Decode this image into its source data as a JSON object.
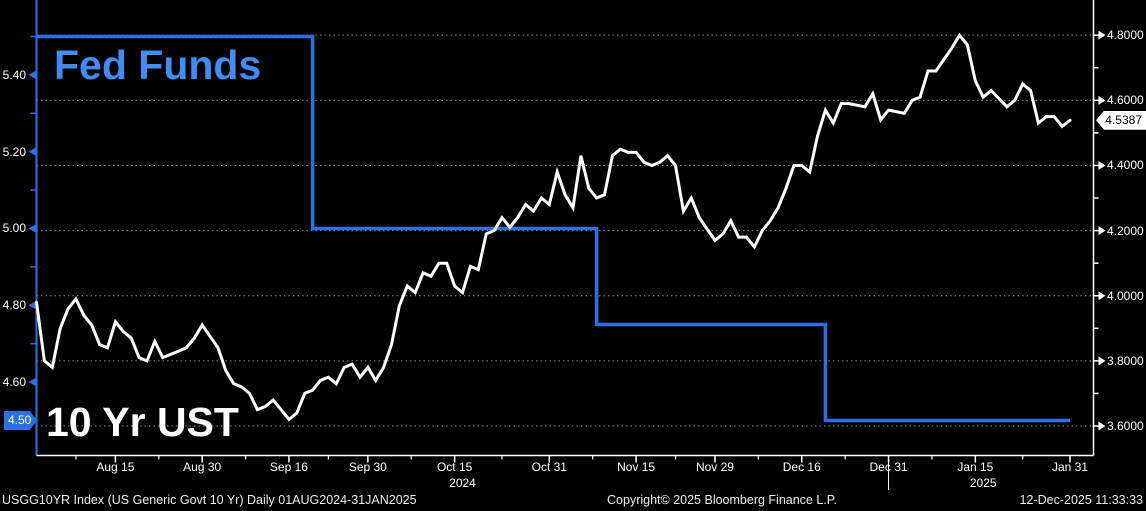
{
  "series_labels": {
    "fed_funds": "Fed Funds",
    "ust": "10 Yr UST"
  },
  "colors": {
    "background": "#000000",
    "chart_blue": "#2C6FE6",
    "label_blue": "#3F8CF5",
    "white": "#FFFFFF",
    "grid_gray": "#909090",
    "value_tag_bg": "#FFFFFF",
    "value_tag_text": "#000000"
  },
  "left_axis": {
    "tick_labels": [
      "5.40",
      "5.20",
      "5.00",
      "4.80",
      "4.60"
    ],
    "tick_values": [
      5.4,
      5.2,
      5.0,
      4.8,
      4.6
    ],
    "minor_tick_values": [
      5.5,
      5.3,
      5.1,
      4.9,
      4.7
    ],
    "highlight_label": "4.50",
    "highlight_value": 4.5
  },
  "right_axis": {
    "tick_labels": [
      "4.8000",
      "4.6000",
      "4.4000",
      "4.2000",
      "4.0000",
      "3.8000",
      "3.6000"
    ],
    "tick_values": [
      4.8,
      4.6,
      4.4,
      4.2,
      4.0,
      3.8,
      3.6
    ],
    "minor_tick_values": [
      4.7,
      4.5,
      4.3,
      4.1,
      3.9,
      3.7
    ],
    "last_label": "4.5387",
    "last_value": 4.5387
  },
  "x_axis": {
    "ticks": [
      {
        "label": "Aug 15",
        "date": "2024-08-15"
      },
      {
        "label": "Aug 30",
        "date": "2024-08-30"
      },
      {
        "label": "Sep 16",
        "date": "2024-09-16"
      },
      {
        "label": "Sep 30",
        "date": "2024-09-30"
      },
      {
        "label": "Oct 15",
        "date": "2024-10-15"
      },
      {
        "label": "Oct 31",
        "date": "2024-10-31"
      },
      {
        "label": "Nov 15",
        "date": "2024-11-15"
      },
      {
        "label": "Nov 29",
        "date": "2024-11-29"
      },
      {
        "label": "Dec 16",
        "date": "2024-12-16"
      },
      {
        "label": "Dec 31",
        "date": "2024-12-31"
      },
      {
        "label": "Jan 15",
        "date": "2025-01-15"
      },
      {
        "label": "Jan 31",
        "date": "2025-01-31"
      }
    ],
    "year_labels": [
      {
        "label": "2024",
        "center_date": "2024-10-16"
      },
      {
        "label": "2025",
        "center_date": "2025-01-16"
      }
    ],
    "year_separator_date": "2024-12-31"
  },
  "footer": {
    "left": "USGG10YR Index (US Generic Govt 10 Yr) Daily 01AUG2024-31JAN2025",
    "center": "Copyright© 2025 Bloomberg Finance L.P.",
    "right": "12-Dec-2025 11:33:33"
  },
  "chart_data": {
    "type": "line",
    "xlim": [
      "2024-08-01",
      "2025-01-31"
    ],
    "left_ylim": [
      4.41,
      5.595
    ],
    "right_ylim": [
      3.511,
      4.908
    ],
    "grid": "dotted-horizontal-at-right-axis-ticks",
    "legend_position": "in-plot-text-labels",
    "series": [
      {
        "name": "Fed Funds",
        "axis": "left",
        "style": "step",
        "color_key": "chart_blue",
        "steps": [
          {
            "from": "2024-08-01",
            "rate": 5.5
          },
          {
            "from": "2024-09-19",
            "rate": 5.0
          },
          {
            "from": "2024-11-08",
            "rate": 4.75
          },
          {
            "from": "2024-12-19",
            "rate": 4.5
          }
        ],
        "end": "2025-01-31"
      },
      {
        "name": "10 Yr UST",
        "axis": "right",
        "style": "line",
        "color_key": "white",
        "dates": [
          "2024-08-01",
          "2024-08-02",
          "2024-08-05",
          "2024-08-06",
          "2024-08-07",
          "2024-08-08",
          "2024-08-09",
          "2024-08-12",
          "2024-08-13",
          "2024-08-14",
          "2024-08-15",
          "2024-08-16",
          "2024-08-19",
          "2024-08-20",
          "2024-08-21",
          "2024-08-22",
          "2024-08-23",
          "2024-08-26",
          "2024-08-27",
          "2024-08-28",
          "2024-08-29",
          "2024-08-30",
          "2024-09-03",
          "2024-09-04",
          "2024-09-05",
          "2024-09-06",
          "2024-09-09",
          "2024-09-10",
          "2024-09-11",
          "2024-09-12",
          "2024-09-13",
          "2024-09-16",
          "2024-09-17",
          "2024-09-18",
          "2024-09-19",
          "2024-09-20",
          "2024-09-23",
          "2024-09-24",
          "2024-09-25",
          "2024-09-26",
          "2024-09-27",
          "2024-09-30",
          "2024-10-01",
          "2024-10-02",
          "2024-10-03",
          "2024-10-04",
          "2024-10-07",
          "2024-10-08",
          "2024-10-09",
          "2024-10-10",
          "2024-10-11",
          "2024-10-14",
          "2024-10-15",
          "2024-10-16",
          "2024-10-17",
          "2024-10-18",
          "2024-10-21",
          "2024-10-22",
          "2024-10-23",
          "2024-10-24",
          "2024-10-25",
          "2024-10-28",
          "2024-10-29",
          "2024-10-30",
          "2024-10-31",
          "2024-11-01",
          "2024-11-04",
          "2024-11-05",
          "2024-11-06",
          "2024-11-07",
          "2024-11-08",
          "2024-11-11",
          "2024-11-12",
          "2024-11-13",
          "2024-11-14",
          "2024-11-15",
          "2024-11-18",
          "2024-11-19",
          "2024-11-20",
          "2024-11-21",
          "2024-11-22",
          "2024-11-25",
          "2024-11-26",
          "2024-11-27",
          "2024-11-29",
          "2024-12-02",
          "2024-12-03",
          "2024-12-04",
          "2024-12-05",
          "2024-12-06",
          "2024-12-09",
          "2024-12-10",
          "2024-12-11",
          "2024-12-12",
          "2024-12-13",
          "2024-12-16",
          "2024-12-17",
          "2024-12-18",
          "2024-12-19",
          "2024-12-20",
          "2024-12-23",
          "2024-12-24",
          "2024-12-26",
          "2024-12-27",
          "2024-12-30",
          "2024-12-31",
          "2025-01-02",
          "2025-01-03",
          "2025-01-06",
          "2025-01-07",
          "2025-01-08",
          "2025-01-10",
          "2025-01-13",
          "2025-01-14",
          "2025-01-15",
          "2025-01-16",
          "2025-01-17",
          "2025-01-21",
          "2025-01-22",
          "2025-01-23",
          "2025-01-24",
          "2025-01-27",
          "2025-01-28",
          "2025-01-29",
          "2025-01-30",
          "2025-01-31"
        ],
        "values": [
          3.98,
          3.8,
          3.78,
          3.9,
          3.96,
          3.99,
          3.94,
          3.91,
          3.85,
          3.84,
          3.92,
          3.89,
          3.87,
          3.81,
          3.8,
          3.86,
          3.81,
          3.82,
          3.83,
          3.84,
          3.87,
          3.91,
          3.84,
          3.77,
          3.73,
          3.72,
          3.7,
          3.65,
          3.66,
          3.68,
          3.65,
          3.62,
          3.64,
          3.7,
          3.71,
          3.74,
          3.75,
          3.73,
          3.78,
          3.79,
          3.75,
          3.78,
          3.74,
          3.78,
          3.85,
          3.97,
          4.03,
          4.01,
          4.07,
          4.06,
          4.1,
          4.1,
          4.03,
          4.01,
          4.09,
          4.08,
          4.19,
          4.2,
          4.24,
          4.21,
          4.24,
          4.28,
          4.26,
          4.3,
          4.28,
          4.38,
          4.31,
          4.27,
          4.43,
          4.33,
          4.3,
          4.31,
          4.43,
          4.45,
          4.44,
          4.44,
          4.41,
          4.4,
          4.41,
          4.43,
          4.4,
          4.26,
          4.3,
          4.24,
          4.17,
          4.19,
          4.23,
          4.18,
          4.18,
          4.15,
          4.2,
          4.23,
          4.27,
          4.33,
          4.4,
          4.4,
          4.38,
          4.49,
          4.57,
          4.53,
          4.59,
          4.59,
          4.58,
          4.62,
          4.54,
          4.57,
          4.56,
          4.6,
          4.61,
          4.69,
          4.69,
          4.76,
          4.8,
          4.77,
          4.66,
          4.61,
          4.63,
          4.58,
          4.6,
          4.65,
          4.63,
          4.53,
          4.55,
          4.55,
          4.52,
          4.5387
        ]
      }
    ]
  }
}
